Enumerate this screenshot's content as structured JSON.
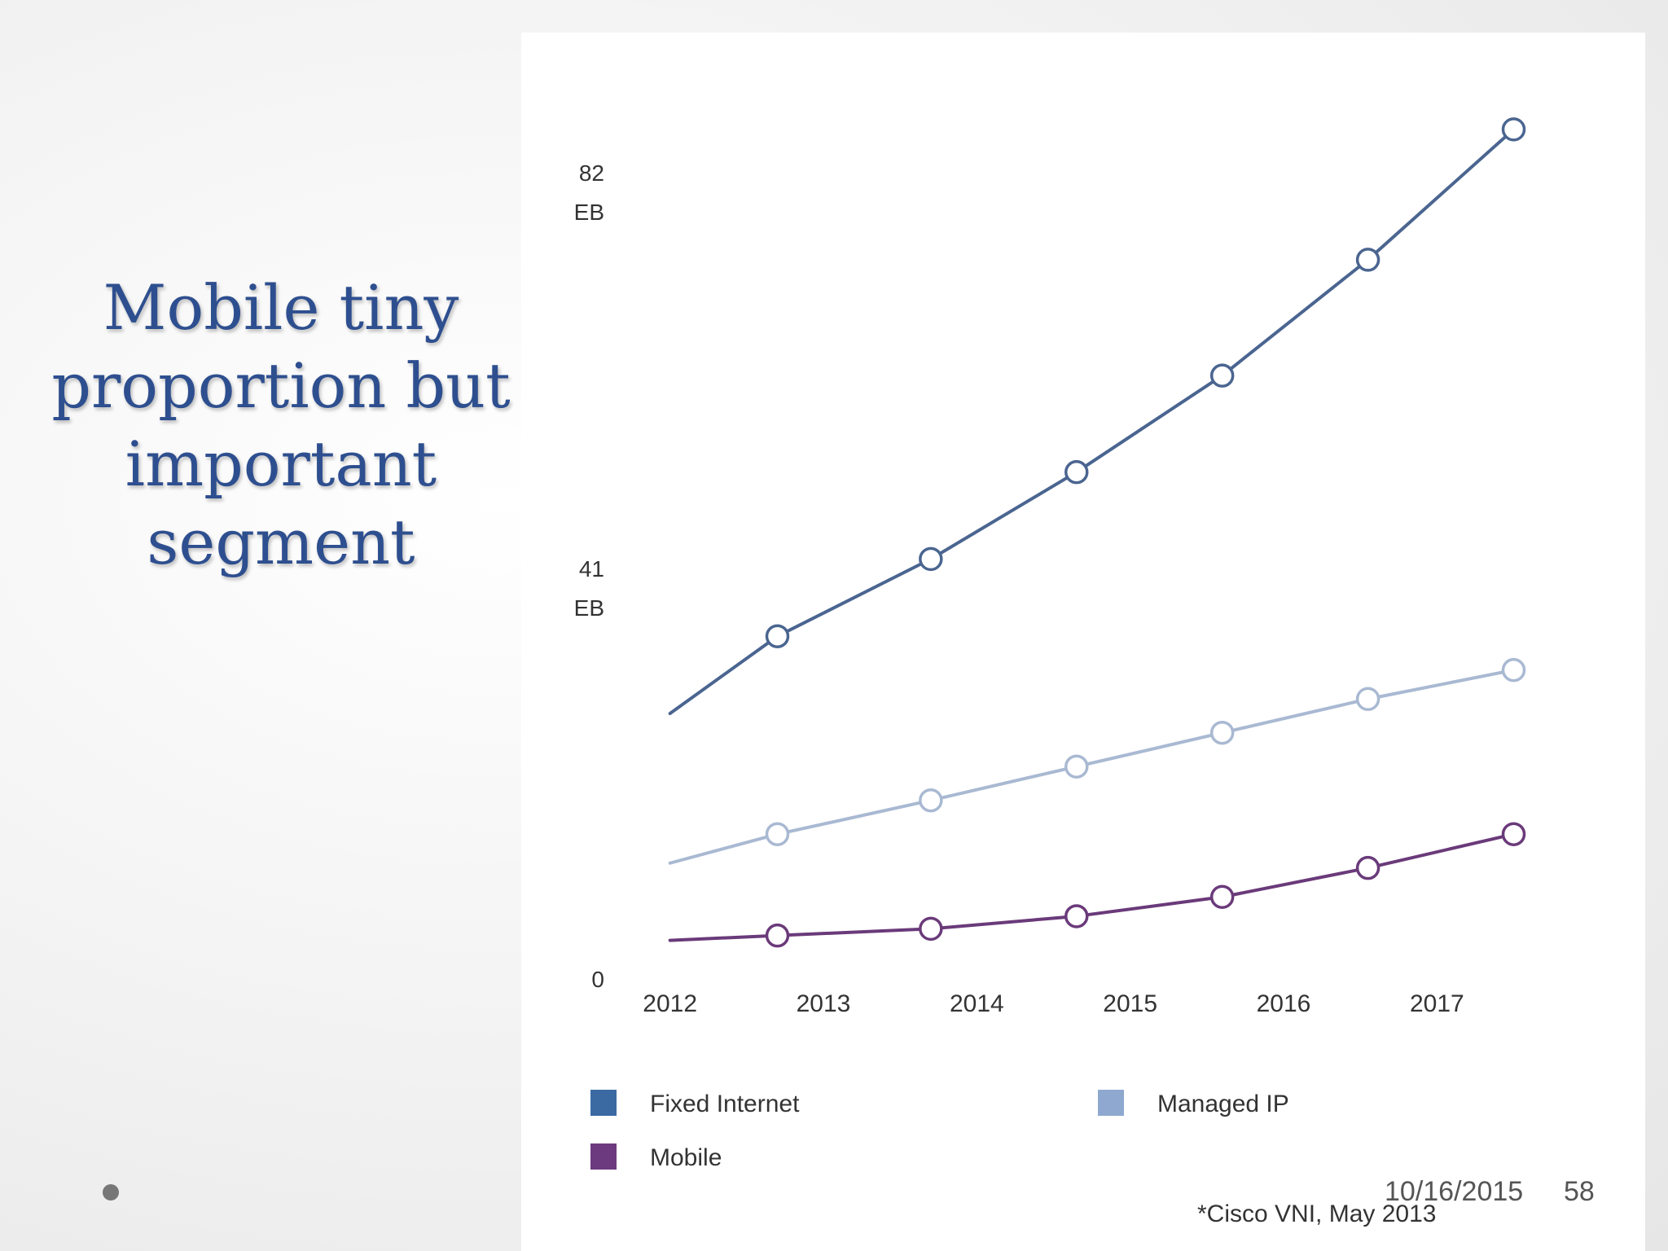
{
  "slide": {
    "title_lines": [
      "Mobile tiny",
      "proportion but",
      "important",
      "segment"
    ],
    "date": "10/16/2015",
    "page_number": "58"
  },
  "chart_data": {
    "type": "line",
    "x": [
      2012,
      2012.7,
      2013.7,
      2014.65,
      2015.6,
      2016.55,
      2017.5
    ],
    "x_tick_labels": [
      "2012",
      "2013",
      "2014",
      "2015",
      "2016",
      "2017"
    ],
    "x_ticks": [
      2012,
      2013,
      2014,
      2015,
      2016,
      2017
    ],
    "xlim": [
      2011.8,
      2017.8
    ],
    "y_ticks": [
      {
        "value": 0,
        "label": "0",
        "unit": ""
      },
      {
        "value": 41,
        "label": "41",
        "unit": "EB"
      },
      {
        "value": 82,
        "label": "82",
        "unit": "EB"
      }
    ],
    "ylim": [
      0,
      82
    ],
    "series": [
      {
        "name": "Fixed Internet",
        "color": "#4a6590",
        "marker_start": 1,
        "values": [
          27.5,
          35.5,
          43.5,
          52.5,
          62.5,
          74.5,
          88
        ]
      },
      {
        "name": "Managed IP",
        "color": "#a9b9d2",
        "marker_start": 1,
        "values": [
          12,
          15,
          18.5,
          22,
          25.5,
          29,
          32
        ]
      },
      {
        "name": "Mobile",
        "color": "#6a3a7a",
        "marker_start": 1,
        "values": [
          4,
          4.5,
          5.2,
          6.5,
          8.5,
          11.5,
          15
        ]
      }
    ],
    "legend": [
      {
        "name": "Fixed Internet",
        "color": "#3b6aa3"
      },
      {
        "name": "Managed IP",
        "color": "#8fa8cf"
      },
      {
        "name": "Mobile",
        "color": "#6b3a7f"
      }
    ],
    "source": "*Cisco VNI, May 2013"
  }
}
